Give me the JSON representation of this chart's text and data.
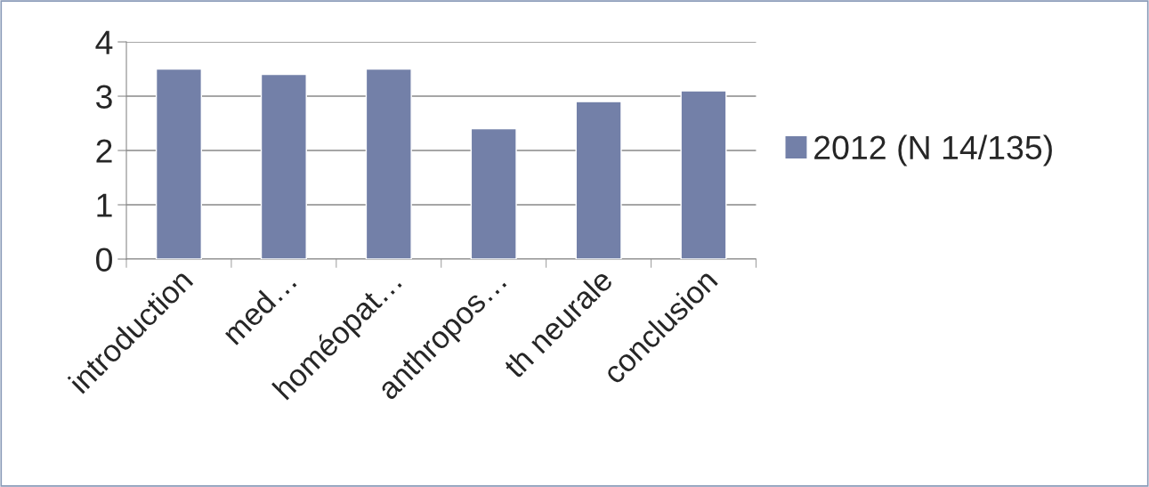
{
  "chart_data": {
    "type": "bar",
    "categories": [
      "introduction",
      "med…",
      "homéopat…",
      "anthropos…",
      "th neurale",
      "conclusion"
    ],
    "series": [
      {
        "name": "2012 (N 14/135)",
        "color": "#7380a8",
        "values": [
          3.5,
          3.4,
          3.5,
          2.4,
          2.9,
          3.1
        ]
      }
    ],
    "ylim": [
      0,
      4
    ],
    "yticks": [
      0,
      1,
      2,
      3,
      4
    ],
    "grid": "y",
    "legend": "right"
  }
}
